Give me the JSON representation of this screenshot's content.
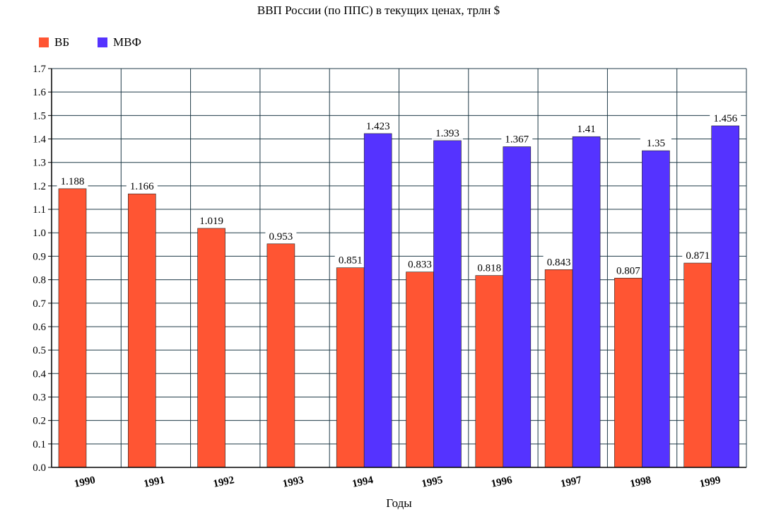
{
  "chart_data": {
    "type": "bar",
    "title": "ВВП России (по ППС) в текущих ценах, трлн $",
    "xlabel": "Годы",
    "ylabel": "",
    "categories": [
      "1990",
      "1991",
      "1992",
      "1993",
      "1994",
      "1995",
      "1996",
      "1997",
      "1998",
      "1999"
    ],
    "series": [
      {
        "name": "ВБ",
        "color": "#ff5533",
        "values": [
          1.188,
          1.166,
          1.019,
          0.953,
          0.851,
          0.833,
          0.818,
          0.843,
          0.807,
          0.871
        ],
        "labels": [
          "1.188",
          "1.166",
          "1.019",
          "0.953",
          "0.851",
          "0.833",
          "0.818",
          "0.843",
          "0.807",
          "0.871"
        ]
      },
      {
        "name": "МВФ",
        "color": "#5533ff",
        "values": [
          null,
          null,
          null,
          null,
          1.423,
          1.393,
          1.367,
          1.41,
          1.35,
          1.456
        ],
        "labels": [
          "",
          "",
          "",
          "",
          "1.423",
          "1.393",
          "1.367",
          "1.41",
          "1.35",
          "1.456"
        ]
      }
    ],
    "ylim": [
      0,
      1.7
    ],
    "yticks": [
      "0.0",
      "0.1",
      "0.2",
      "0.3",
      "0.4",
      "0.5",
      "0.6",
      "0.7",
      "0.8",
      "0.9",
      "1.0",
      "1.1",
      "1.2",
      "1.3",
      "1.4",
      "1.5",
      "1.6",
      "1.7"
    ],
    "grid": true,
    "legend_position": "top-left"
  }
}
